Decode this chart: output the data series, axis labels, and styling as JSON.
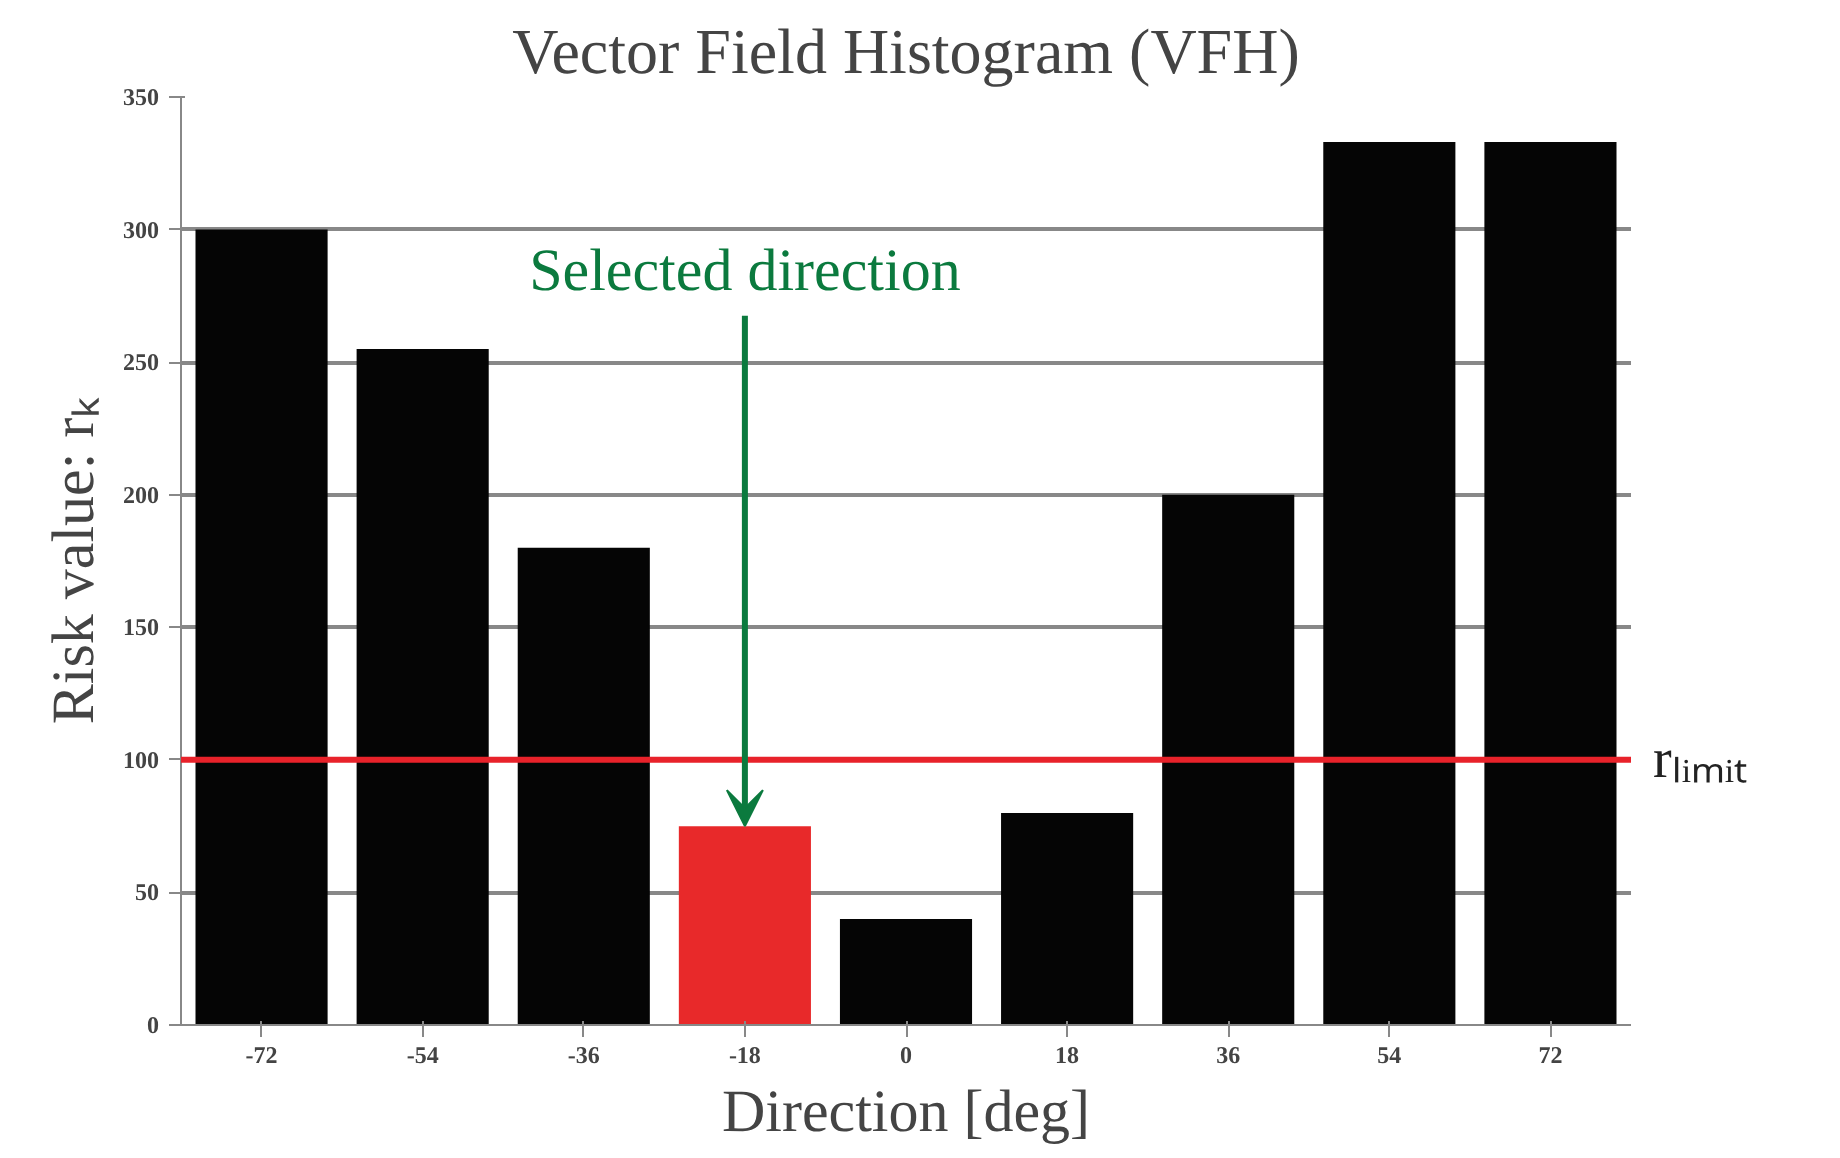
{
  "chart_data": {
    "type": "bar",
    "title": "Vector Field Histogram (VFH)",
    "xlabel": "Direction [deg]",
    "ylabel": "Risk value: rₖ",
    "categories": [
      "-72",
      "-54",
      "-36",
      "-18",
      "0",
      "18",
      "36",
      "54",
      "72"
    ],
    "values": [
      300,
      255,
      180,
      75,
      40,
      80,
      200,
      333,
      333
    ],
    "colors": [
      "#050505",
      "#050505",
      "#050505",
      "#e8292a",
      "#050505",
      "#050505",
      "#050505",
      "#050505",
      "#050505"
    ],
    "ylim": [
      0,
      350
    ],
    "yticks": [
      0,
      50,
      100,
      150,
      200,
      250,
      300,
      350
    ],
    "grid": "y",
    "ref_lines": [
      {
        "axis": "y",
        "value": 100,
        "label": "rₗᵢₘᵢₜ",
        "color": "#e8222a"
      }
    ],
    "annotations": [
      {
        "text": "Selected direction",
        "x": "-18",
        "y": 75
      }
    ]
  }
}
